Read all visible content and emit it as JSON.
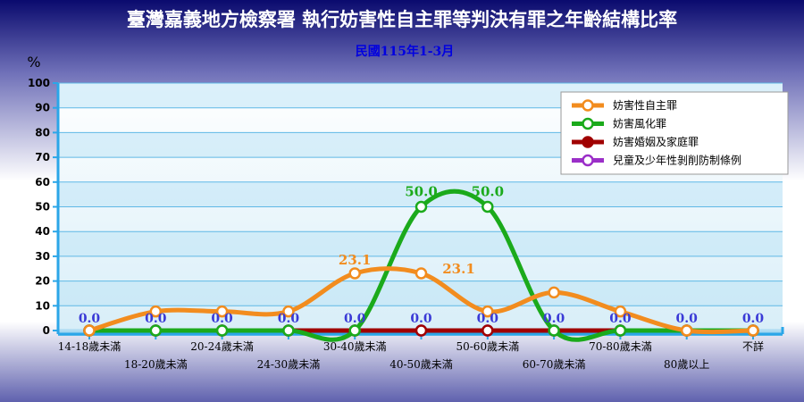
{
  "chart_data": {
    "type": "line",
    "title": "臺灣嘉義地方檢察署  執行妨害性自主罪等判決有罪之年齡結構比率",
    "subtitle": "民國115年1-3月",
    "ylabel": "%",
    "xlabel": "",
    "ylim": [
      0,
      100
    ],
    "yticks": [
      0,
      10,
      20,
      30,
      40,
      50,
      60,
      70,
      80,
      90,
      100
    ],
    "grid": true,
    "legend_position": "right",
    "categories": [
      "14-18歲未滿",
      "18-20歲未滿",
      "20-24歲未滿",
      "24-30歲未滿",
      "30-40歲未滿",
      "40-50歲未滿",
      "50-60歲未滿",
      "60-70歲未滿",
      "70-80歲未滿",
      "80歲以上",
      "不詳"
    ],
    "series": [
      {
        "name": "妨害性自主罪",
        "color": "#F28C1E",
        "values": [
          0,
          7.7,
          7.7,
          7.7,
          23.1,
          23.1,
          7.7,
          15.4,
          7.7,
          0,
          0
        ],
        "labels": [
          "",
          "",
          "",
          "",
          "23.1",
          "23.1",
          "",
          "",
          "",
          "",
          ""
        ]
      },
      {
        "name": "妨害風化罪",
        "color": "#1BAA1B",
        "values": [
          0,
          0,
          0,
          0,
          0,
          50.0,
          50.0,
          0,
          0,
          0,
          0
        ],
        "labels": [
          "",
          "",
          "",
          "",
          "",
          "50.0",
          "50.0",
          "",
          "",
          "",
          ""
        ]
      },
      {
        "name": "妨害婚姻及家庭罪",
        "color": "#A00000",
        "values": [
          0,
          0,
          0,
          0,
          0,
          0,
          0,
          0,
          0,
          0,
          0
        ],
        "labels": [
          "",
          "",
          "",
          "",
          "",
          "",
          "",
          "",
          "",
          "",
          ""
        ]
      },
      {
        "name": "兒童及少年性剝削防制條例",
        "color": "#9B2FC8",
        "values": [
          0,
          0,
          0,
          0,
          0,
          0,
          0,
          0,
          0,
          0,
          0
        ],
        "labels": [
          "",
          "",
          "",
          "",
          "",
          "",
          "",
          "",
          "",
          "",
          ""
        ]
      }
    ],
    "zero_labels": [
      "0.0",
      "0.0",
      "0.0",
      "0.0",
      "0.0",
      "0.0",
      "0.0",
      "0.0",
      "0.0",
      "0.0",
      "0.0"
    ]
  }
}
